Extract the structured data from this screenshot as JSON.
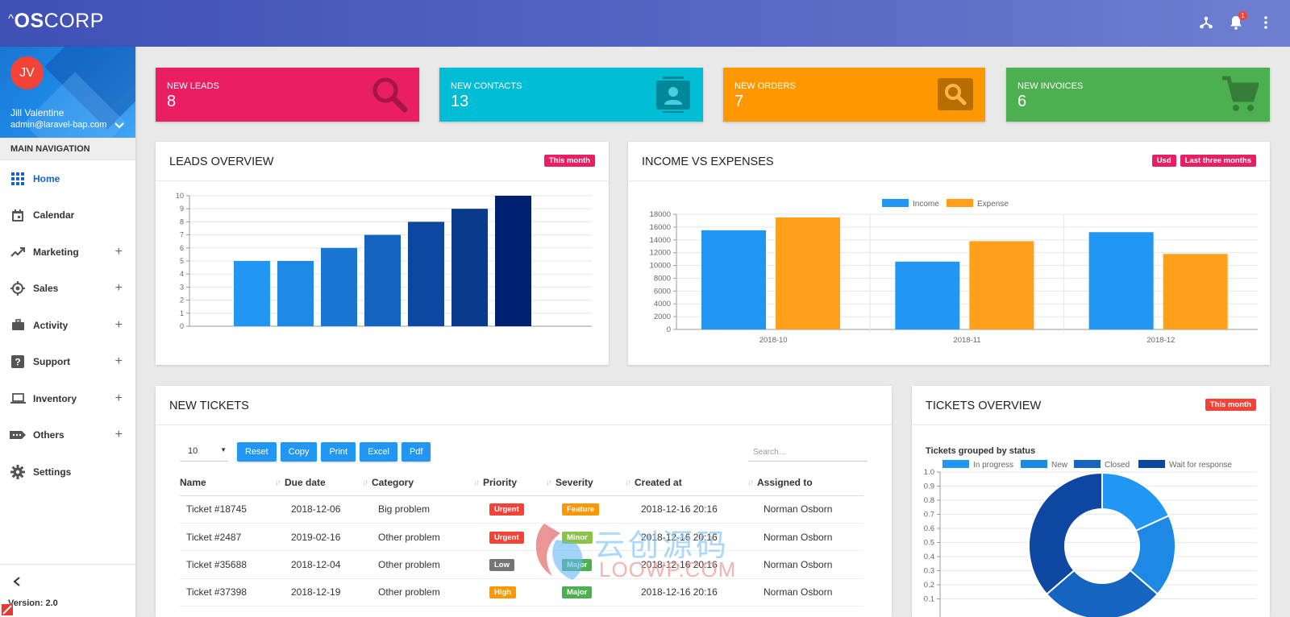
{
  "app": {
    "logo_prefix": "^",
    "logo_bold": "OS",
    "logo_rest": "CORP",
    "notification_count": "1"
  },
  "user": {
    "initials": "JV",
    "name": "Jill Valentine",
    "email": "admin@laravel-bap.com"
  },
  "nav": {
    "heading": "MAIN NAVIGATION",
    "items": [
      {
        "label": "Home",
        "icon": "grid-icon",
        "active": true,
        "expandable": false
      },
      {
        "label": "Calendar",
        "icon": "calendar-icon",
        "active": false,
        "expandable": false
      },
      {
        "label": "Marketing",
        "icon": "trending-up-icon",
        "active": false,
        "expandable": true
      },
      {
        "label": "Sales",
        "icon": "target-icon",
        "active": false,
        "expandable": true
      },
      {
        "label": "Activity",
        "icon": "briefcase-icon",
        "active": false,
        "expandable": true
      },
      {
        "label": "Support",
        "icon": "help-icon",
        "active": false,
        "expandable": true
      },
      {
        "label": "Inventory",
        "icon": "laptop-icon",
        "active": false,
        "expandable": true
      },
      {
        "label": "Others",
        "icon": "label-icon",
        "active": false,
        "expandable": true
      },
      {
        "label": "Settings",
        "icon": "gear-icon",
        "active": false,
        "expandable": false
      }
    ],
    "expand_symbol": "+",
    "version": "Version: 2.0"
  },
  "stats": [
    {
      "label": "NEW LEADS",
      "value": "8",
      "color": "#e91e63",
      "icon": "search-icon"
    },
    {
      "label": "NEW CONTACTS",
      "value": "13",
      "color": "#00bcd4",
      "icon": "contact-card-icon"
    },
    {
      "label": "NEW ORDERS",
      "value": "7",
      "color": "#ff9800",
      "icon": "search-box-icon"
    },
    {
      "label": "NEW INVOICES",
      "value": "6",
      "color": "#4caf50",
      "icon": "cart-icon"
    }
  ],
  "leads_card": {
    "title": "LEADS OVERVIEW",
    "tag": "This month",
    "tag_color": "#e91e63"
  },
  "income_card": {
    "title": "INCOME VS EXPENSES",
    "tags": [
      {
        "label": "Usd",
        "color": "#e91e63"
      },
      {
        "label": "Last three months",
        "color": "#e91e63"
      }
    ]
  },
  "tickets_card": {
    "title": "NEW TICKETS",
    "page_size": "10",
    "buttons": [
      "Reset",
      "Copy",
      "Print",
      "Excel",
      "Pdf"
    ],
    "search_placeholder": "Search...",
    "columns": [
      "Name",
      "Due date",
      "Category",
      "Priority",
      "Severity",
      "Created at",
      "Assigned to"
    ],
    "rows": [
      {
        "name": "Ticket #18745",
        "due": "2018-12-06",
        "category": "Big problem",
        "priority": "Urgent",
        "priority_color": "#f44336",
        "severity": "Feature",
        "severity_color": "#ff9800",
        "created": "2018-12-16 20:16",
        "assigned": "Norman Osborn"
      },
      {
        "name": "Ticket #2487",
        "due": "2019-02-16",
        "category": "Other problem",
        "priority": "Urgent",
        "priority_color": "#f44336",
        "severity": "Minor",
        "severity_color": "#8bc34a",
        "created": "2018-12-16 20:16",
        "assigned": "Norman Osborn"
      },
      {
        "name": "Ticket #35688",
        "due": "2018-12-04",
        "category": "Other problem",
        "priority": "Low",
        "priority_color": "#757575",
        "severity": "Major",
        "severity_color": "#4caf50",
        "created": "2018-12-16 20:16",
        "assigned": "Norman Osborn"
      },
      {
        "name": "Ticket #37398",
        "due": "2018-12-19",
        "category": "Other problem",
        "priority": "High",
        "priority_color": "#ff9800",
        "severity": "Major",
        "severity_color": "#4caf50",
        "created": "2018-12-16 20:16",
        "assigned": "Norman Osborn"
      }
    ]
  },
  "tickets_overview": {
    "title": "TICKETS OVERVIEW",
    "tag": "This month",
    "tag_color": "#f44336",
    "subtitle": "Tickets grouped by status"
  },
  "watermark": {
    "text_cn": "云创源码",
    "text_en": "LOOWP.COM"
  },
  "chart_data": [
    {
      "id": "leads",
      "type": "bar",
      "categories": [
        "",
        "",
        "",
        "",
        "",
        "",
        ""
      ],
      "values": [
        5,
        5,
        6,
        7,
        8,
        9,
        10
      ],
      "colors": [
        "#2196f3",
        "#1e88e5",
        "#1976d2",
        "#1565c0",
        "#0d47a1",
        "#0a3a8c",
        "#002171"
      ],
      "ylim": [
        0,
        10
      ],
      "yticks": [
        0,
        1,
        2,
        3,
        4,
        5,
        6,
        7,
        8,
        9,
        10
      ],
      "grid": true
    },
    {
      "id": "income",
      "type": "bar",
      "categories": [
        "2018-10",
        "2018-11",
        "2018-12"
      ],
      "series": [
        {
          "name": "Income",
          "values": [
            15500,
            10600,
            15200
          ],
          "color": "#2196f3"
        },
        {
          "name": "Expense",
          "values": [
            17500,
            13800,
            11800
          ],
          "color": "#ff9f1a"
        }
      ],
      "ylim": [
        0,
        18000
      ],
      "yticks": [
        0,
        2000,
        4000,
        6000,
        8000,
        10000,
        12000,
        14000,
        16000,
        18000
      ],
      "legend": "top",
      "grid": true
    },
    {
      "id": "tickets",
      "type": "pie",
      "labels": [
        "In progress",
        "New",
        "Closed",
        "Wait for response"
      ],
      "values": [
        2,
        2,
        3,
        4
      ],
      "colors": [
        "#2196f3",
        "#1e88e5",
        "#1565c0",
        "#0d47a1"
      ],
      "yticks": [
        "1.0",
        "0.9",
        "0.8",
        "0.7",
        "0.6",
        "0.5",
        "0.4",
        "0.3",
        "0.2",
        "0.1"
      ],
      "legend": "top"
    }
  ]
}
